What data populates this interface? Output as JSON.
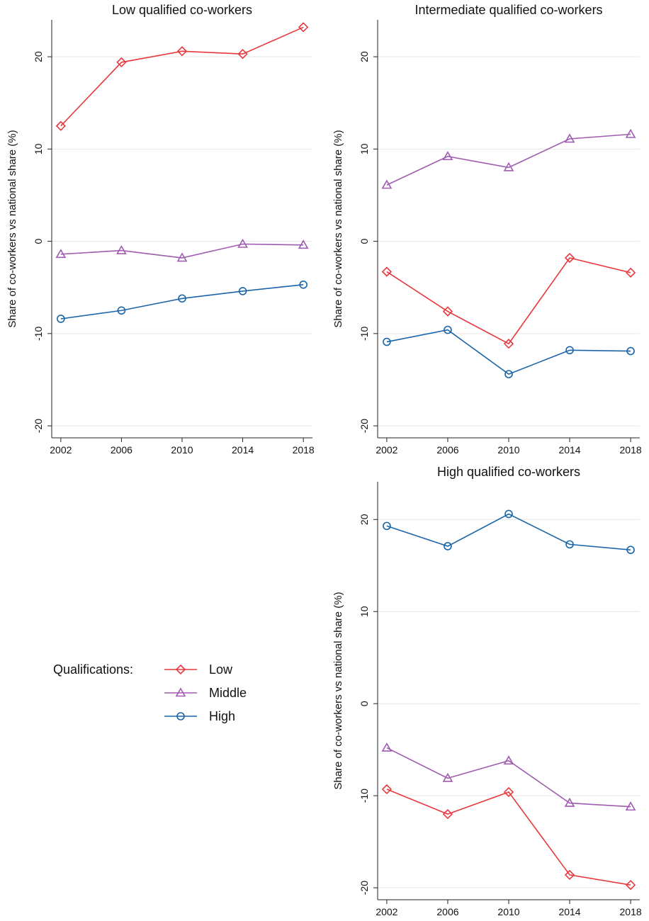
{
  "chart_data": [
    {
      "type": "line",
      "title": "Low qualified co-workers",
      "y_label": "Share of co-workers vs national share (%)",
      "legend_title": "Qualifications:",
      "x": [
        2002,
        2006,
        2010,
        2014,
        2018
      ],
      "xlim": [
        2001.4,
        2018.6
      ],
      "xticks": [
        2002,
        2006,
        2010,
        2014,
        2018
      ],
      "ylim": [
        -21.3,
        24
      ],
      "yticks": [
        -20,
        -10,
        0,
        10,
        20
      ],
      "grid": true,
      "series": [
        {
          "name": "Low",
          "color": "#e8383d",
          "marker": "diamond",
          "values": [
            12.5,
            19.4,
            20.6,
            20.3,
            23.2
          ]
        },
        {
          "name": "Middle",
          "color": "#a05cb0",
          "marker": "triangle",
          "values": [
            -1.4,
            -1.0,
            -1.8,
            -0.3,
            -0.4
          ]
        },
        {
          "name": "High",
          "color": "#1a65a8",
          "marker": "circle",
          "values": [
            -8.4,
            -7.5,
            -6.2,
            -5.4,
            -4.7
          ]
        }
      ]
    },
    {
      "type": "line",
      "title": "Intermediate qualified co-workers",
      "y_label": "Share of co-workers vs national share (%)",
      "x": [
        2002,
        2006,
        2010,
        2014,
        2018
      ],
      "xlim": [
        2001.4,
        2018.6
      ],
      "xticks": [
        2002,
        2006,
        2010,
        2014,
        2018
      ],
      "ylim": [
        -21.3,
        24
      ],
      "yticks": [
        -20,
        -10,
        0,
        10,
        20
      ],
      "grid": true,
      "series": [
        {
          "name": "Low",
          "color": "#e8383d",
          "marker": "diamond",
          "values": [
            -3.3,
            -7.6,
            -11.1,
            -1.8,
            -3.4
          ]
        },
        {
          "name": "Middle",
          "color": "#a05cb0",
          "marker": "triangle",
          "values": [
            6.1,
            9.2,
            8.0,
            11.1,
            11.6
          ]
        },
        {
          "name": "High",
          "color": "#1a65a8",
          "marker": "circle",
          "values": [
            -10.9,
            -9.6,
            -14.4,
            -11.8,
            -11.9
          ]
        }
      ]
    },
    {
      "type": "line",
      "title": "High qualified co-workers",
      "y_label": "Share of co-workers vs national share (%)",
      "x": [
        2002,
        2006,
        2010,
        2014,
        2018
      ],
      "xlim": [
        2001.4,
        2018.6
      ],
      "xticks": [
        2002,
        2006,
        2010,
        2014,
        2018
      ],
      "ylim": [
        -21.3,
        24.1
      ],
      "yticks": [
        -20,
        -10,
        0,
        10,
        20
      ],
      "grid": true,
      "series": [
        {
          "name": "Low",
          "color": "#e8383d",
          "marker": "diamond",
          "values": [
            -9.3,
            -12.0,
            -9.6,
            -18.6,
            -19.7
          ]
        },
        {
          "name": "Middle",
          "color": "#a05cb0",
          "marker": "triangle",
          "values": [
            -4.8,
            -8.1,
            -6.2,
            -10.8,
            -11.2
          ]
        },
        {
          "name": "High",
          "color": "#1a65a8",
          "marker": "circle",
          "values": [
            19.3,
            17.1,
            20.6,
            17.3,
            16.7
          ]
        }
      ]
    }
  ]
}
